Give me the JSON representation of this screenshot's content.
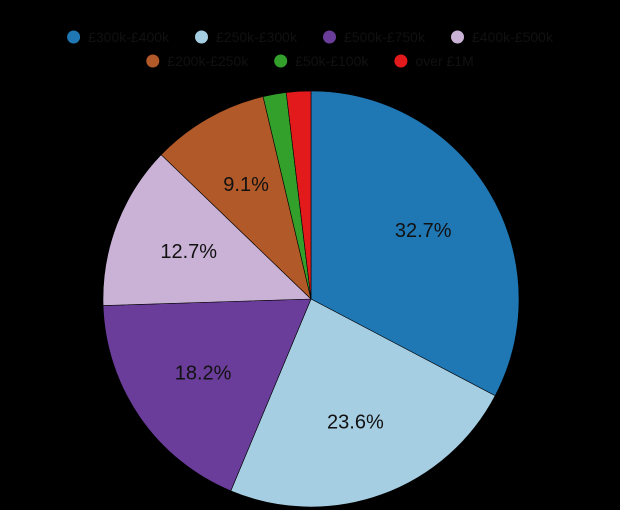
{
  "chart_data": {
    "type": "pie",
    "title": "",
    "legend_placement": "top",
    "start_angle_deg": 0,
    "direction": "clockwise",
    "background": "#000000",
    "categories": [
      "£300k-£400k",
      "£250k-£300k",
      "£500k-£750k",
      "£400k-£500k",
      "£200k-£250k",
      "£50k-£100k",
      "over £1M"
    ],
    "values": [
      32.7,
      23.6,
      18.2,
      12.7,
      9.1,
      1.8,
      1.9
    ],
    "value_labels": [
      "32.7%",
      "23.6%",
      "18.2%",
      "12.7%",
      "9.1%",
      "",
      ""
    ],
    "colors": [
      "#1f77b4",
      "#a6cee3",
      "#6a3d9a",
      "#cab2d6",
      "#b15928",
      "#33a02c",
      "#e31a1c"
    ]
  }
}
